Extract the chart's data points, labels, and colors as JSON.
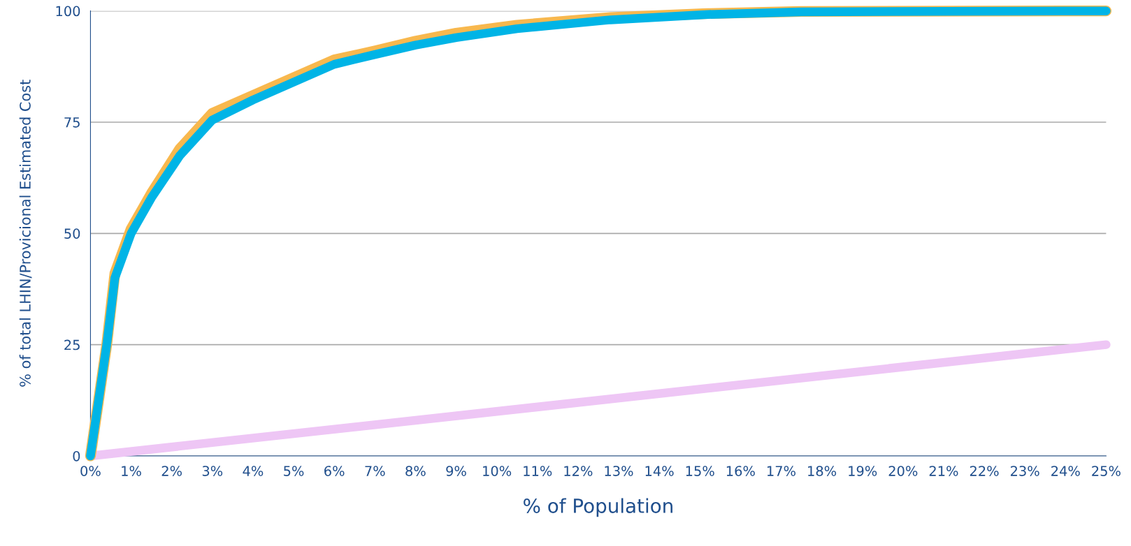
{
  "chart_data": {
    "type": "line",
    "xlabel": "% of Population",
    "ylabel": "% of total LHIN/Provicional Estimated Cost",
    "xlim": [
      0,
      25
    ],
    "ylim": [
      0,
      100
    ],
    "xticks": [
      {
        "value": 0,
        "label": "0%"
      },
      {
        "value": 1,
        "label": "1%"
      },
      {
        "value": 2,
        "label": "2%"
      },
      {
        "value": 3,
        "label": "3%"
      },
      {
        "value": 4,
        "label": "4%"
      },
      {
        "value": 5,
        "label": "5%"
      },
      {
        "value": 6,
        "label": "6%"
      },
      {
        "value": 7,
        "label": "7%"
      },
      {
        "value": 8,
        "label": "8%"
      },
      {
        "value": 9,
        "label": "9%"
      },
      {
        "value": 10,
        "label": "10%"
      },
      {
        "value": 11,
        "label": "11%"
      },
      {
        "value": 12,
        "label": "12%"
      },
      {
        "value": 13,
        "label": "13%"
      },
      {
        "value": 14,
        "label": "14%"
      },
      {
        "value": 15,
        "label": "15%"
      },
      {
        "value": 16,
        "label": "16%"
      },
      {
        "value": 17,
        "label": "17%"
      },
      {
        "value": 18,
        "label": "18%"
      },
      {
        "value": 19,
        "label": "19%"
      },
      {
        "value": 20,
        "label": "20%"
      },
      {
        "value": 21,
        "label": "21%"
      },
      {
        "value": 22,
        "label": "22%"
      },
      {
        "value": 23,
        "label": "23%"
      },
      {
        "value": 24,
        "label": "24%"
      },
      {
        "value": 25,
        "label": "25%"
      }
    ],
    "yticks": [
      0,
      25,
      50,
      75,
      100
    ],
    "grid": "y",
    "line_style": "solid",
    "series": [
      {
        "color": "#f8b84e",
        "x": [
          0,
          0.4,
          0.6,
          1,
          1.5,
          2.2,
          3,
          4,
          5,
          6,
          7,
          8,
          9,
          10.5,
          12.8,
          15.2,
          17.5,
          25
        ],
        "values": [
          0,
          25,
          41,
          51,
          59,
          69,
          77,
          81,
          85,
          89,
          91,
          93.2,
          95,
          96.8,
          98.5,
          99.4,
          99.9,
          100
        ]
      },
      {
        "color": "#00b4e6",
        "x": [
          0,
          0.4,
          0.6,
          1,
          1.5,
          2.2,
          3,
          4,
          5,
          6,
          7,
          8,
          9,
          10.5,
          12.8,
          15.2,
          17.5,
          25
        ],
        "values": [
          0,
          25,
          40,
          50,
          58,
          67.5,
          75.5,
          80,
          84,
          88,
          90.2,
          92.3,
          94,
          96,
          98,
          99.2,
          99.8,
          100
        ]
      },
      {
        "color": "#eec6f5",
        "x": [
          0,
          25
        ],
        "values": [
          0,
          25
        ]
      }
    ]
  }
}
